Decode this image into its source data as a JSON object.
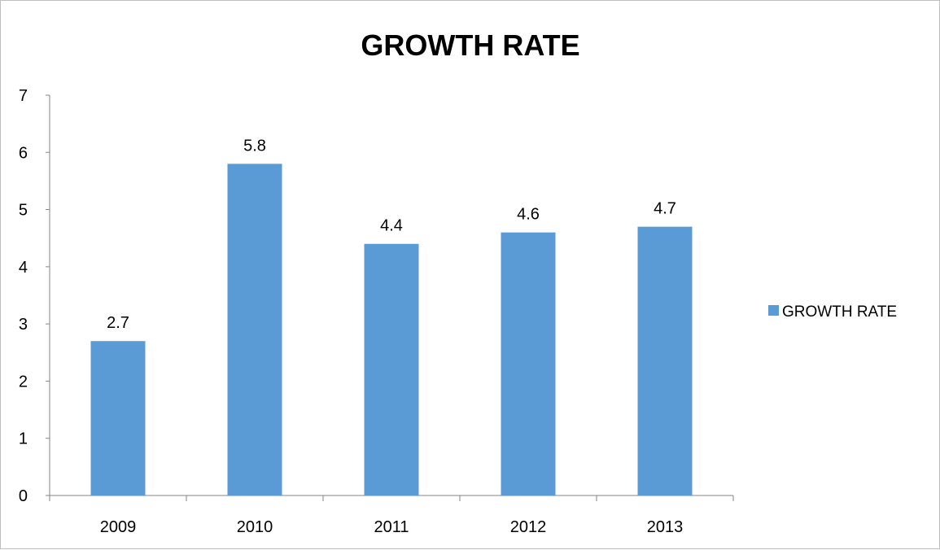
{
  "chart_data": {
    "type": "bar",
    "title": "GROWTH RATE",
    "categories": [
      "2009",
      "2010",
      "2011",
      "2012",
      "2013"
    ],
    "series": [
      {
        "name": "GROWTH RATE",
        "values": [
          2.7,
          5.8,
          4.4,
          4.6,
          4.7
        ]
      }
    ],
    "ylim": [
      0,
      7
    ],
    "yticks": [
      "0",
      "1",
      "2",
      "3",
      "4",
      "5",
      "6",
      "7"
    ],
    "grid": false,
    "legend": "right",
    "data_labels": true,
    "bar_color": "#5b9bd5"
  }
}
